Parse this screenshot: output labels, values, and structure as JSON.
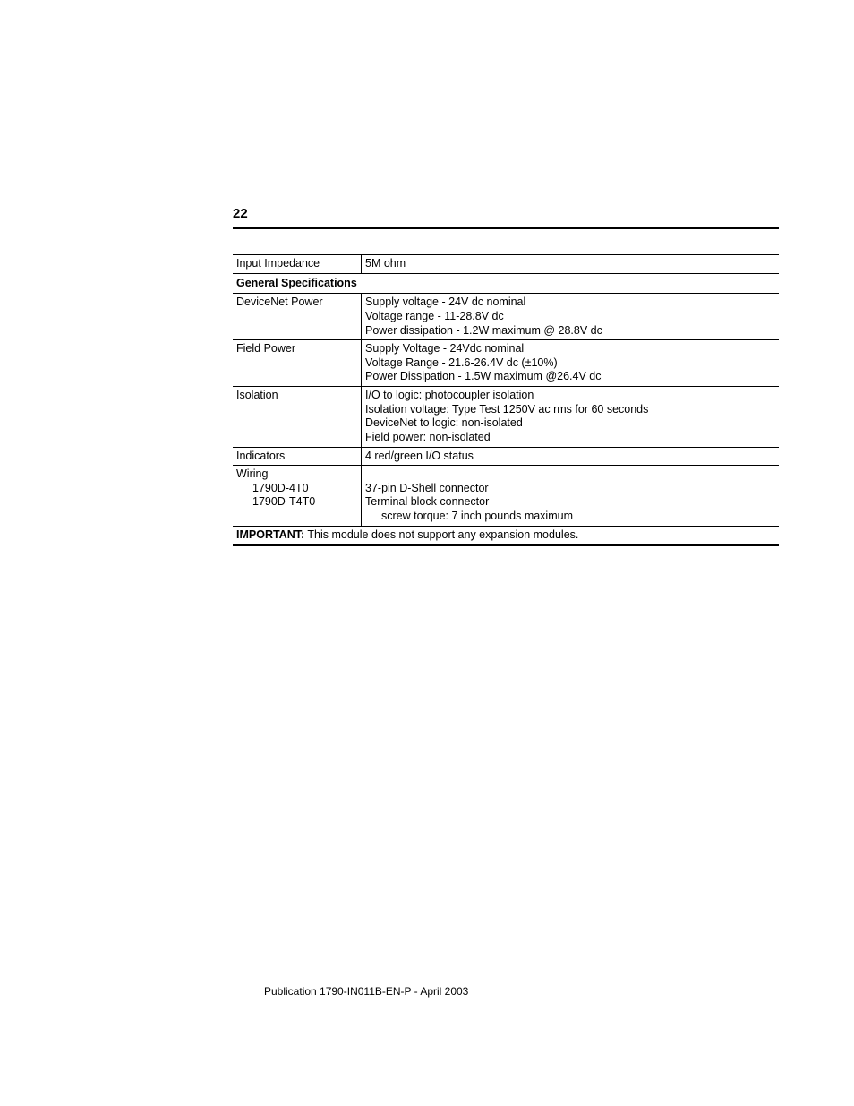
{
  "page_number": "22",
  "footer": "Publication 1790-IN011B-EN-P -  April 2003",
  "rows": {
    "input_impedance": {
      "label": "Input Impedance",
      "value": "5M ohm"
    },
    "section": "General Specifications",
    "devicenet": {
      "label": "DeviceNet Power",
      "l1": "Supply voltage - 24V dc nominal",
      "l2": "Voltage range - 11-28.8V dc",
      "l3": "Power dissipation - 1.2W maximum @ 28.8V dc"
    },
    "fieldpower": {
      "label": "Field Power",
      "l1": "Supply Voltage - 24Vdc nominal",
      "l2": "Voltage Range - 21.6-26.4V dc (±10%)",
      "l3": "Power Dissipation - 1.5W maximum @26.4V dc"
    },
    "isolation": {
      "label": "Isolation",
      "l1": "I/O to logic: photocoupler isolation",
      "l2": "Isolation voltage: Type Test 1250V ac rms for 60 seconds",
      "l3": "DeviceNet to logic: non-isolated",
      "l4": "Field power: non-isolated"
    },
    "indicators": {
      "label": "Indicators",
      "value": "4 red/green I/O status"
    },
    "wiring": {
      "label": "Wiring",
      "sub1": "1790D-4T0",
      "sub2": "1790D-T4T0",
      "l1": "37-pin D-Shell connector",
      "l2": "Terminal block connector",
      "l3": "screw torque: 7 inch pounds maximum"
    },
    "important": {
      "prefix": "IMPORTANT:",
      "text": " This module does not support any expansion modules."
    }
  }
}
